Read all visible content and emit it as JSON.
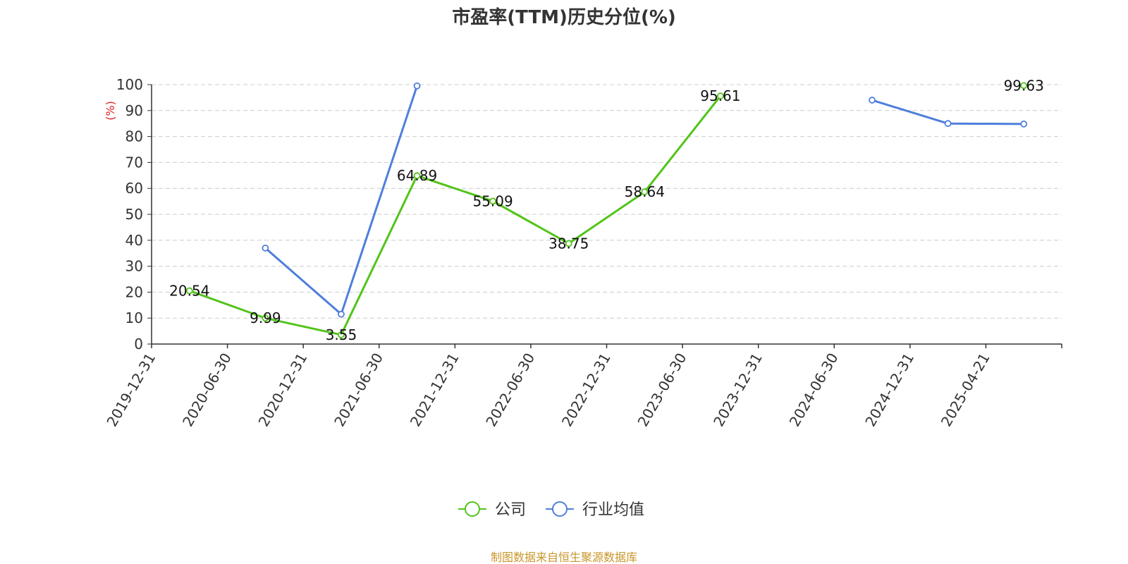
{
  "chart_data": {
    "type": "line",
    "title": "市盈率(TTM)历史分位(%)",
    "ylabel": "(%)",
    "ylim": [
      0,
      100
    ],
    "yticks": [
      "0",
      "10",
      "20",
      "30",
      "40",
      "50",
      "60",
      "70",
      "80",
      "90",
      "100"
    ],
    "categories": [
      "2019-12-31",
      "2020-06-30",
      "2020-12-31",
      "2021-06-30",
      "2021-12-31",
      "2022-06-30",
      "2022-12-31",
      "2023-06-30",
      "2023-12-31",
      "2024-06-30",
      "2024-12-31",
      "2025-04-21"
    ],
    "series": [
      {
        "name": "公司",
        "color": "#52c41a",
        "values": [
          20.54,
          9.99,
          3.55,
          64.89,
          55.09,
          38.75,
          58.64,
          95.61,
          null,
          null,
          null,
          99.63
        ],
        "labels": [
          "20.54",
          "9.99",
          "3.55",
          "64.89",
          "55.09",
          "38.75",
          "58.64",
          "95.61",
          null,
          null,
          null,
          "99.63"
        ]
      },
      {
        "name": "行业均值",
        "color": "#4f7fdc",
        "values": [
          null,
          37,
          11.5,
          99.5,
          null,
          null,
          null,
          null,
          null,
          94,
          85,
          84.8
        ]
      }
    ],
    "grid": true,
    "legend_position": "bottom",
    "source": "制图数据来自恒生聚源数据库"
  },
  "colors": {
    "ylabel": "#e02020",
    "source": "#c8962a",
    "grid": "#cccccc",
    "axis": "#333333"
  }
}
